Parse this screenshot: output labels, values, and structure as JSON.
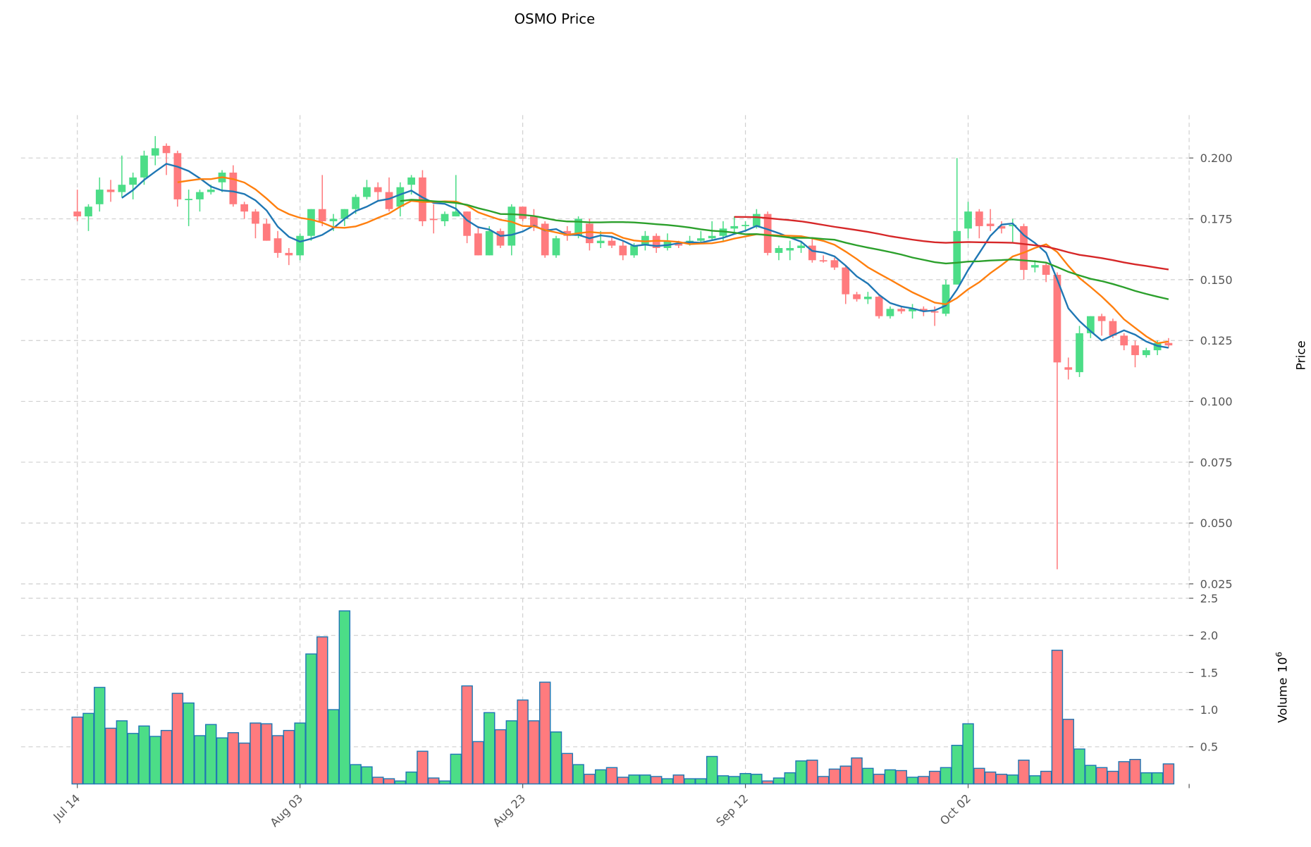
{
  "chart_data": {
    "type": "candlestick",
    "title": "OSMO Price",
    "ylabel_price": "Price",
    "ylabel_volume": "Volume",
    "volume_exponent": "10",
    "volume_exponent_power": "6",
    "ylim_price": [
      0.0222,
      0.2176
    ],
    "ylim_volume": [
      0,
      2.5
    ],
    "price_ticks": [
      "0.025",
      "0.050",
      "0.075",
      "0.100",
      "0.125",
      "0.150",
      "0.175",
      "0.200"
    ],
    "volume_ticks": [
      "0.5",
      "1.0",
      "1.5",
      "2.0",
      "2.5"
    ],
    "x_ticks": [
      {
        "index": 0,
        "label": "Jul 14"
      },
      {
        "index": 20,
        "label": "Aug 03"
      },
      {
        "index": 40,
        "label": "Aug 23"
      },
      {
        "index": 60,
        "label": "Sep 12"
      },
      {
        "index": 80,
        "label": "Oct 02"
      }
    ],
    "grid": true,
    "colors": {
      "up": "#4cdd87",
      "down": "#ff7b7e",
      "volume_edge": "#1f77b4"
    },
    "moving_averages": [
      {
        "window": 5,
        "color": "#1f77b4"
      },
      {
        "window": 10,
        "color": "#ff7f0e"
      },
      {
        "window": 30,
        "color": "#2ca02c"
      },
      {
        "window": 60,
        "color": "#d62728"
      }
    ],
    "ohlc": [
      [
        0.178,
        0.187,
        0.174,
        0.176
      ],
      [
        0.176,
        0.181,
        0.17,
        0.18
      ],
      [
        0.181,
        0.192,
        0.178,
        0.187
      ],
      [
        0.187,
        0.191,
        0.182,
        0.186
      ],
      [
        0.186,
        0.201,
        0.184,
        0.189
      ],
      [
        0.189,
        0.194,
        0.183,
        0.192
      ],
      [
        0.192,
        0.203,
        0.189,
        0.201
      ],
      [
        0.201,
        0.209,
        0.197,
        0.204
      ],
      [
        0.205,
        0.206,
        0.193,
        0.202
      ],
      [
        0.202,
        0.203,
        0.18,
        0.183
      ],
      [
        0.183,
        0.187,
        0.172,
        0.1832
      ],
      [
        0.183,
        0.187,
        0.178,
        0.186
      ],
      [
        0.186,
        0.189,
        0.185,
        0.187
      ],
      [
        0.19,
        0.195,
        0.186,
        0.194
      ],
      [
        0.194,
        0.197,
        0.18,
        0.181
      ],
      [
        0.181,
        0.182,
        0.175,
        0.178
      ],
      [
        0.178,
        0.179,
        0.167,
        0.173
      ],
      [
        0.173,
        0.175,
        0.166,
        0.166
      ],
      [
        0.167,
        0.17,
        0.159,
        0.161
      ],
      [
        0.161,
        0.163,
        0.156,
        0.16
      ],
      [
        0.16,
        0.169,
        0.158,
        0.168
      ],
      [
        0.168,
        0.179,
        0.166,
        0.179
      ],
      [
        0.179,
        0.193,
        0.172,
        0.174
      ],
      [
        0.174,
        0.177,
        0.17,
        0.175
      ],
      [
        0.175,
        0.179,
        0.172,
        0.179
      ],
      [
        0.179,
        0.185,
        0.177,
        0.184
      ],
      [
        0.184,
        0.191,
        0.183,
        0.188
      ],
      [
        0.188,
        0.19,
        0.182,
        0.186
      ],
      [
        0.186,
        0.192,
        0.178,
        0.179
      ],
      [
        0.18,
        0.19,
        0.176,
        0.188
      ],
      [
        0.189,
        0.193,
        0.185,
        0.192
      ],
      [
        0.192,
        0.195,
        0.172,
        0.174
      ],
      [
        0.175,
        0.181,
        0.169,
        0.1748
      ],
      [
        0.174,
        0.178,
        0.172,
        0.177
      ],
      [
        0.176,
        0.193,
        0.176,
        0.178
      ],
      [
        0.178,
        0.178,
        0.165,
        0.168
      ],
      [
        0.169,
        0.172,
        0.16,
        0.16
      ],
      [
        0.16,
        0.172,
        0.16,
        0.17
      ],
      [
        0.17,
        0.171,
        0.163,
        0.164
      ],
      [
        0.164,
        0.181,
        0.16,
        0.18
      ],
      [
        0.18,
        0.18,
        0.174,
        0.175
      ],
      [
        0.176,
        0.179,
        0.17,
        0.172
      ],
      [
        0.173,
        0.174,
        0.159,
        0.16
      ],
      [
        0.16,
        0.168,
        0.159,
        0.167
      ],
      [
        0.17,
        0.172,
        0.166,
        0.168
      ],
      [
        0.168,
        0.176,
        0.167,
        0.175
      ],
      [
        0.173,
        0.175,
        0.162,
        0.165
      ],
      [
        0.165,
        0.17,
        0.163,
        0.166
      ],
      [
        0.166,
        0.168,
        0.163,
        0.164
      ],
      [
        0.164,
        0.166,
        0.158,
        0.16
      ],
      [
        0.16,
        0.165,
        0.159,
        0.164
      ],
      [
        0.164,
        0.17,
        0.162,
        0.168
      ],
      [
        0.168,
        0.169,
        0.161,
        0.163
      ],
      [
        0.163,
        0.169,
        0.162,
        0.166
      ],
      [
        0.165,
        0.166,
        0.163,
        0.164
      ],
      [
        0.165,
        0.168,
        0.164,
        0.166
      ],
      [
        0.166,
        0.17,
        0.165,
        0.167
      ],
      [
        0.167,
        0.174,
        0.166,
        0.168
      ],
      [
        0.168,
        0.174,
        0.166,
        0.171
      ],
      [
        0.171,
        0.176,
        0.169,
        0.172
      ],
      [
        0.172,
        0.174,
        0.17,
        0.1725
      ],
      [
        0.172,
        0.179,
        0.171,
        0.177
      ],
      [
        0.177,
        0.178,
        0.16,
        0.161
      ],
      [
        0.161,
        0.164,
        0.158,
        0.163
      ],
      [
        0.162,
        0.166,
        0.158,
        0.163
      ],
      [
        0.163,
        0.166,
        0.161,
        0.164
      ],
      [
        0.164,
        0.167,
        0.157,
        0.158
      ],
      [
        0.158,
        0.16,
        0.157,
        0.1578
      ],
      [
        0.158,
        0.159,
        0.154,
        0.155
      ],
      [
        0.155,
        0.156,
        0.14,
        0.144
      ],
      [
        0.144,
        0.145,
        0.141,
        0.142
      ],
      [
        0.142,
        0.145,
        0.14,
        0.143
      ],
      [
        0.143,
        0.144,
        0.134,
        0.135
      ],
      [
        0.135,
        0.139,
        0.134,
        0.138
      ],
      [
        0.138,
        0.139,
        0.136,
        0.137
      ],
      [
        0.137,
        0.14,
        0.134,
        0.138
      ],
      [
        0.138,
        0.139,
        0.135,
        0.137
      ],
      [
        0.137,
        0.139,
        0.131,
        0.1368
      ],
      [
        0.136,
        0.15,
        0.135,
        0.148
      ],
      [
        0.148,
        0.2,
        0.148,
        0.17
      ],
      [
        0.171,
        0.182,
        0.167,
        0.178
      ],
      [
        0.178,
        0.179,
        0.167,
        0.172
      ],
      [
        0.173,
        0.179,
        0.17,
        0.172
      ],
      [
        0.172,
        0.174,
        0.169,
        0.171
      ],
      [
        0.172,
        0.175,
        0.165,
        0.1725
      ],
      [
        0.172,
        0.173,
        0.15,
        0.154
      ],
      [
        0.155,
        0.158,
        0.153,
        0.156
      ],
      [
        0.156,
        0.157,
        0.149,
        0.152
      ],
      [
        0.152,
        0.153,
        0.031,
        0.116
      ],
      [
        0.114,
        0.118,
        0.109,
        0.113
      ],
      [
        0.112,
        0.131,
        0.11,
        0.128
      ],
      [
        0.128,
        0.135,
        0.126,
        0.135
      ],
      [
        0.135,
        0.136,
        0.127,
        0.133
      ],
      [
        0.133,
        0.134,
        0.126,
        0.127
      ],
      [
        0.127,
        0.128,
        0.121,
        0.123
      ],
      [
        0.123,
        0.125,
        0.114,
        0.119
      ],
      [
        0.119,
        0.122,
        0.118,
        0.121
      ],
      [
        0.121,
        0.125,
        0.119,
        0.124
      ],
      [
        0.124,
        0.126,
        0.122,
        0.123
      ]
    ],
    "volume": [
      0.9,
      0.95,
      1.3,
      0.75,
      0.85,
      0.68,
      0.78,
      0.64,
      0.72,
      1.22,
      1.09,
      0.65,
      0.8,
      0.62,
      0.69,
      0.55,
      0.82,
      0.81,
      0.65,
      0.72,
      0.82,
      1.75,
      1.98,
      1.0,
      2.33,
      0.26,
      0.23,
      0.09,
      0.07,
      0.04,
      0.16,
      0.44,
      0.08,
      0.04,
      0.4,
      1.32,
      0.57,
      0.96,
      0.73,
      0.85,
      1.13,
      0.85,
      1.37,
      0.7,
      0.41,
      0.26,
      0.13,
      0.19,
      0.22,
      0.09,
      0.12,
      0.12,
      0.1,
      0.07,
      0.12,
      0.07,
      0.07,
      0.37,
      0.11,
      0.1,
      0.14,
      0.13,
      0.04,
      0.08,
      0.15,
      0.31,
      0.32,
      0.1,
      0.2,
      0.24,
      0.35,
      0.21,
      0.13,
      0.19,
      0.18,
      0.09,
      0.1,
      0.17,
      0.22,
      0.52,
      0.81,
      0.21,
      0.16,
      0.13,
      0.12,
      0.32,
      0.11,
      0.17,
      1.8,
      0.87,
      0.47,
      0.25,
      0.22,
      0.17,
      0.3,
      0.33,
      0.15,
      0.15,
      0.27
    ]
  }
}
